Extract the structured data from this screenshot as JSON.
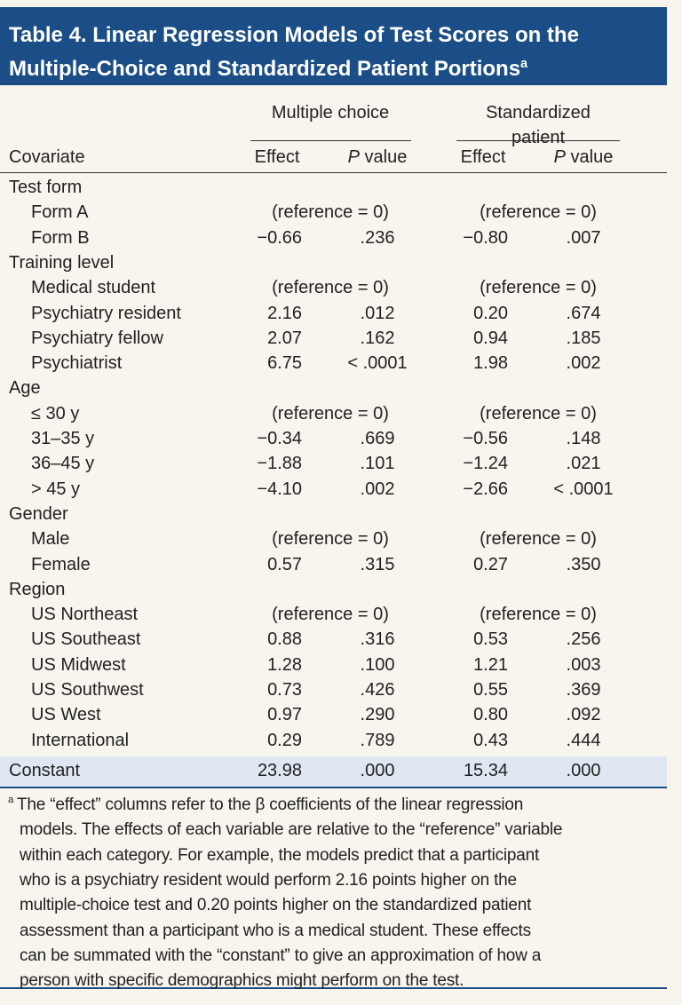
{
  "header": {
    "title_lines": [
      "Table 4. Linear Regression Models of Test Scores on the",
      "Multiple-Choice and Standardized Patient Portions"
    ],
    "title_note": "a"
  },
  "table": {
    "covariate_label": "Covariate",
    "groups": [
      {
        "label": "Multiple choice",
        "effect_label": "Effect",
        "p_italic": "P",
        "p_rest": "value"
      },
      {
        "label": "Standardized patient",
        "effect_label": "Effect",
        "p_italic": "P",
        "p_rest": "value"
      }
    ],
    "sections": [
      {
        "label": "Test form",
        "rows": [
          {
            "label": "Form A",
            "reference": [
              "(reference = 0)",
              "(reference = 0)"
            ]
          },
          {
            "label": "Form B",
            "cells": [
              "−0.66",
              ".236",
              "−0.80",
              ".007"
            ]
          }
        ]
      },
      {
        "label": "Training level",
        "rows": [
          {
            "label": "Medical student",
            "reference": [
              "(reference = 0)",
              "(reference = 0)"
            ]
          },
          {
            "label": "Psychiatry resident",
            "cells": [
              "2.16",
              ".012",
              "0.20",
              ".674"
            ]
          },
          {
            "label": "Psychiatry fellow",
            "cells": [
              "2.07",
              ".162",
              "0.94",
              ".185"
            ]
          },
          {
            "label": "Psychiatrist",
            "cells": [
              "6.75",
              "< .0001",
              "1.98",
              ".002"
            ]
          }
        ]
      },
      {
        "label": "Age",
        "rows": [
          {
            "label": "≤ 30 y",
            "reference": [
              "(reference = 0)",
              "(reference = 0)"
            ]
          },
          {
            "label": "31–35 y",
            "cells": [
              "−0.34",
              ".669",
              "−0.56",
              ".148"
            ]
          },
          {
            "label": "36–45 y",
            "cells": [
              "−1.88",
              ".101",
              "−1.24",
              ".021"
            ]
          },
          {
            "label": "> 45 y",
            "cells": [
              "−4.10",
              ".002",
              "−2.66",
              "< .0001"
            ]
          }
        ]
      },
      {
        "label": "Gender",
        "rows": [
          {
            "label": "Male",
            "reference": [
              "(reference = 0)",
              "(reference = 0)"
            ]
          },
          {
            "label": "Female",
            "cells": [
              "0.57",
              ".315",
              "0.27",
              ".350"
            ]
          }
        ]
      },
      {
        "label": "Region",
        "rows": [
          {
            "label": "US Northeast",
            "reference": [
              "(reference = 0)",
              "(reference = 0)"
            ]
          },
          {
            "label": "US Southeast",
            "cells": [
              "0.88",
              ".316",
              "0.53",
              ".256"
            ]
          },
          {
            "label": "US Midwest",
            "cells": [
              "1.28",
              ".100",
              "1.21",
              ".003"
            ]
          },
          {
            "label": "US Southwest",
            "cells": [
              "0.73",
              ".426",
              "0.55",
              ".369"
            ]
          },
          {
            "label": "US West",
            "cells": [
              "0.97",
              ".290",
              "0.80",
              ".092"
            ]
          },
          {
            "label": "International",
            "cells": [
              "0.29",
              ".789",
              "0.43",
              ".444"
            ]
          }
        ]
      }
    ],
    "constant": {
      "label": "Constant",
      "cells": [
        "23.98",
        ".000",
        "15.34",
        ".000"
      ]
    }
  },
  "footnote": {
    "marker": "a",
    "lines": [
      "The “effect” columns refer to the β coefficients of the linear regression",
      "models. The effects of each variable are relative to the “reference” variable",
      "within each category. For example, the models predict that a participant",
      "who is a psychiatry resident would perform 2.16 points higher on the",
      "multiple-choice test and 0.20 points higher on the standardized patient",
      "assessment than a participant who is a medical student. These effects",
      "can be summated with the “constant” to give an approximation of how a",
      "person with specific demographics might perform on the test."
    ]
  }
}
